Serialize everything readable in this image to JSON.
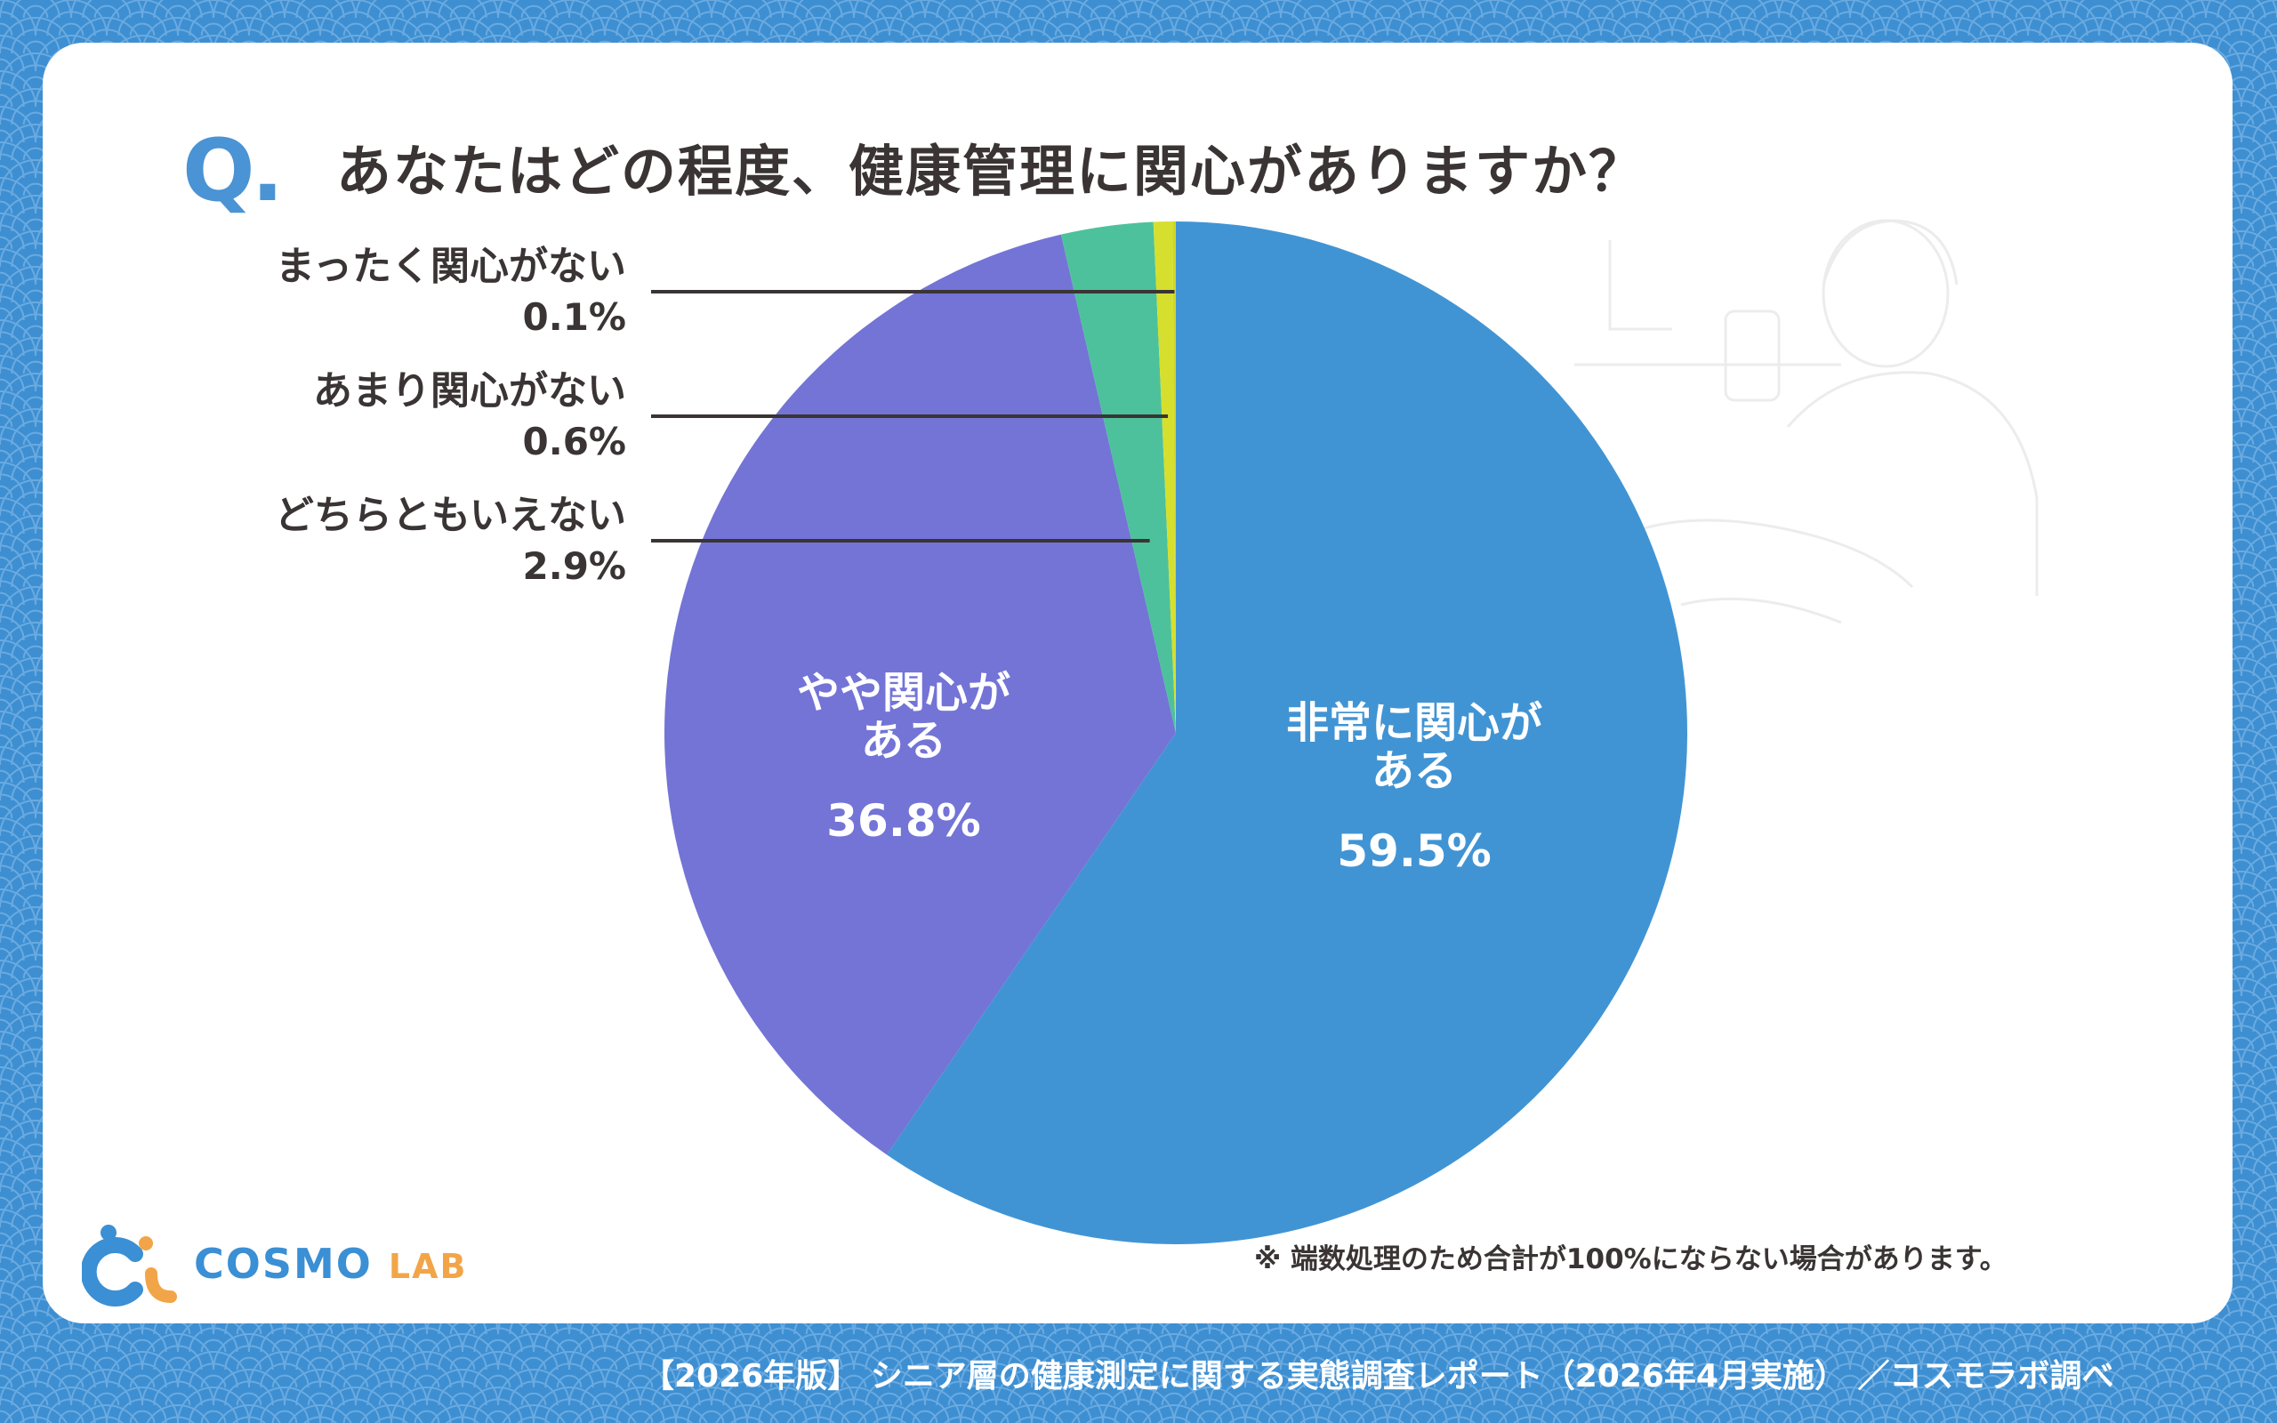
{
  "question": {
    "mark": "Q.",
    "text": "あなたはどの程度、健康管理に関心がありますか？"
  },
  "chart_data": {
    "type": "pie",
    "slices": [
      {
        "label": "非常に関心がある",
        "label_lines": [
          "非常に関心が",
          "ある"
        ],
        "value": 59.5,
        "display": "59.5%",
        "color": "#4194d4"
      },
      {
        "label": "やや関心がある",
        "label_lines": [
          "やや関心が",
          "ある"
        ],
        "value": 36.8,
        "display": "36.8%",
        "color": "#7374d6"
      },
      {
        "label": "どちらともいえない",
        "value": 2.9,
        "display": "2.9%",
        "color": "#4dc19b"
      },
      {
        "label": "あまり関心がない",
        "value": 0.6,
        "display": "0.6%",
        "color": "#d6df2d"
      },
      {
        "label": "まったく関心がない",
        "value": 0.1,
        "display": "0.1%",
        "color": "#cfd62a"
      }
    ]
  },
  "note": "※ 端数処理のため合計が100%にならない場合があります。",
  "logo": {
    "word1": "COSMO",
    "word2": "LAB"
  },
  "footer": "【2026年版】 シニア層の健康測定に関する実態調査レポート（2026年4月実施） ／コスモラボ調べ",
  "colors": {
    "background": "#3d8fd2",
    "card": "#ffffff",
    "text": "#3a3434",
    "accent": "#4a93d4"
  }
}
